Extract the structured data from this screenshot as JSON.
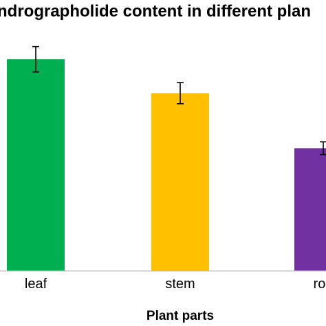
{
  "chart_data": {
    "type": "bar",
    "title": "ndrographolide content in different plan",
    "xlabel": "Plant parts",
    "ylabel": "",
    "categories": [
      "leaf",
      "stem",
      "roo"
    ],
    "values": [
      100,
      84,
      58
    ],
    "errors": [
      6,
      5,
      3
    ],
    "bar_colors": [
      "#00B050",
      "#FFC000",
      "#7030A0"
    ],
    "ylim": [
      0,
      115
    ],
    "grid": false
  }
}
